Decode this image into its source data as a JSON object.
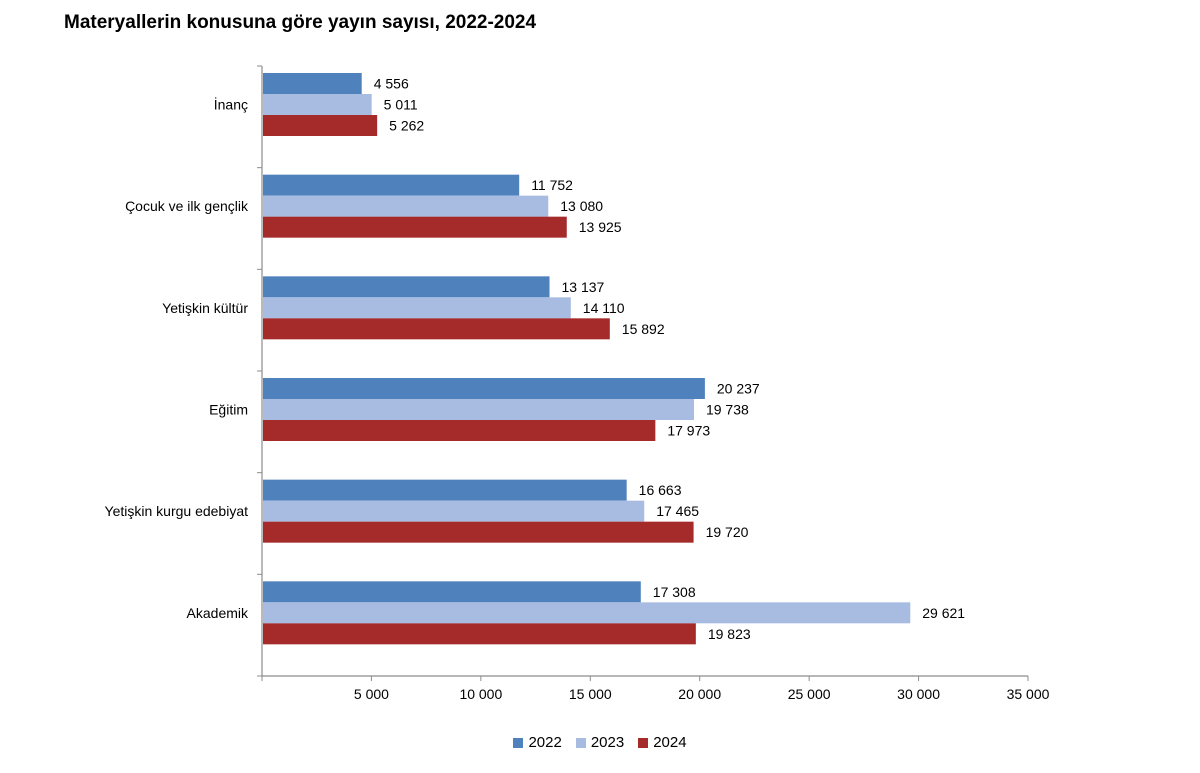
{
  "chart_data": {
    "type": "bar",
    "orientation": "horizontal",
    "title": "Materyallerin konusuna göre yayın sayısı, 2022-2024",
    "xlabel": "",
    "ylabel": "",
    "categories": [
      "İnanç",
      "Çocuk ve ilk gençlik",
      "Yetişkin kültür",
      "Eğitim",
      "Yetişkin kurgu edebiyat",
      "Akademik"
    ],
    "series": [
      {
        "name": "2022",
        "color": "#4F81BD",
        "values": [
          4556,
          11752,
          13137,
          20237,
          16663,
          17308
        ],
        "labels": [
          "4 556",
          "11 752",
          "13 137",
          "20 237",
          "16 663",
          "17 308"
        ]
      },
      {
        "name": "2023",
        "color": "#A7BCE0",
        "values": [
          5011,
          13080,
          14110,
          19738,
          17465,
          29621
        ],
        "labels": [
          "5 011",
          "13 080",
          "14 110",
          "19 738",
          "17 465",
          "29 621"
        ]
      },
      {
        "name": "2024",
        "color": "#A52A2A",
        "values": [
          5262,
          13925,
          15892,
          17973,
          19720,
          19823
        ],
        "labels": [
          "5 262",
          "13 925",
          "15 892",
          "17 973",
          "19 720",
          "19 823"
        ]
      }
    ],
    "xlim": [
      0,
      35000
    ],
    "ticks": [
      5000,
      10000,
      15000,
      20000,
      25000,
      30000,
      35000
    ],
    "tick_labels": [
      "5 000",
      "10 000",
      "15 000",
      "20 000",
      "25 000",
      "30 000",
      "35 000"
    ],
    "grid": false,
    "legend": "bottom-center"
  }
}
